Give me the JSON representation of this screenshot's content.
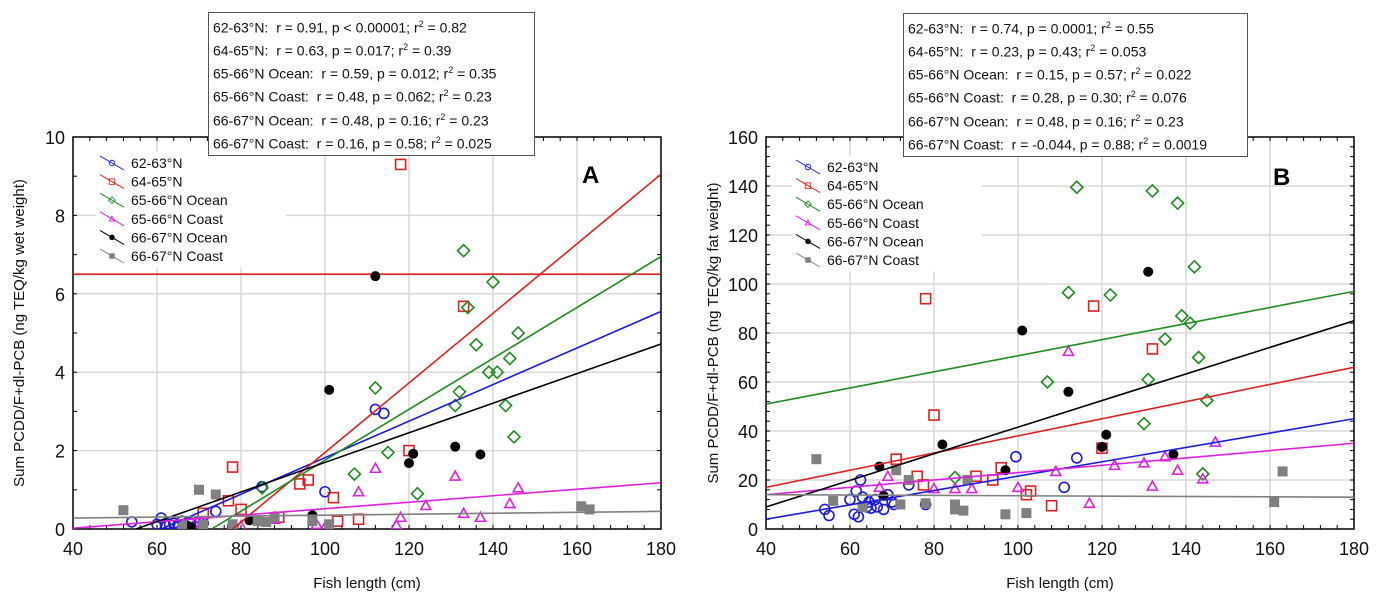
{
  "chart_data": [
    {
      "type": "scatter",
      "panel_label": "A",
      "xlabel": "Fish length (cm)",
      "ylabel": "Sum PCDD/F+dl-PCB (ng TEQ/kg wet weight)",
      "xlim": [
        40,
        180
      ],
      "ylim": [
        0,
        10
      ],
      "xticks": [
        40,
        60,
        80,
        100,
        120,
        140,
        160,
        180
      ],
      "yticks": [
        0,
        2,
        4,
        6,
        8,
        10
      ],
      "grid": true,
      "legend_position": "top-left",
      "stats": [
        {
          "group": "62-63°N:",
          "text": "r = 0.91, p < 0.00001; r",
          "r2": " = 0.82"
        },
        {
          "group": "64-65°N:",
          "text": "r = 0.63, p = 0.017; r",
          "r2": " = 0.39"
        },
        {
          "group": "65-66°N Ocean:",
          "text": "r = 0.59, p = 0.012; r",
          "r2": " = 0.35"
        },
        {
          "group": "65-66°N Coast:",
          "text": "r = 0.48, p = 0.062; r",
          "r2": " = 0.23"
        },
        {
          "group": "66-67°N Ocean:",
          "text": "r = 0.48, p = 0.16; r",
          "r2": " = 0.23"
        },
        {
          "group": "66-67°N Coast:",
          "text": "r = 0.16, p = 0.58; r",
          "r2": " = 0.025"
        }
      ],
      "reference_line": {
        "y": 6.5,
        "color": "#e02020"
      },
      "series": [
        {
          "name": "62-63°N",
          "color": "#1a1ae0",
          "marker": "circle-open",
          "points": [
            [
              54,
              0.18
            ],
            [
              60,
              0.12
            ],
            [
              61,
              0.28
            ],
            [
              62,
              0.1
            ],
            [
              63,
              0.12
            ],
            [
              64,
              0.15
            ],
            [
              65,
              0.1
            ],
            [
              66,
              0.2
            ],
            [
              67,
              0.08
            ],
            [
              68,
              0.15
            ],
            [
              70,
              0.18
            ],
            [
              71,
              0.15
            ],
            [
              74,
              0.45
            ],
            [
              78,
              0.05
            ],
            [
              85,
              1.08
            ],
            [
              100,
              0.95
            ],
            [
              112,
              3.05
            ],
            [
              114,
              2.95
            ]
          ],
          "fit": [
            [
              61,
              0
            ],
            [
              180,
              5.55
            ]
          ]
        },
        {
          "name": "64-65°N",
          "color": "#e02020",
          "marker": "square-open",
          "points": [
            [
              71,
              0.4
            ],
            [
              77,
              0.72
            ],
            [
              78,
              1.58
            ],
            [
              80,
              0.5
            ],
            [
              89,
              0.3
            ],
            [
              94,
              1.15
            ],
            [
              96,
              1.25
            ],
            [
              102,
              0.8
            ],
            [
              103,
              0.2
            ],
            [
              108,
              0.25
            ],
            [
              118,
              9.3
            ],
            [
              120,
              2.0
            ],
            [
              133,
              5.68
            ]
          ],
          "fit": [
            [
              78,
              0
            ],
            [
              180,
              9.05
            ]
          ]
        },
        {
          "name": "65-66°N Ocean",
          "color": "#1e8c1e",
          "marker": "diamond-open",
          "points": [
            [
              85,
              1.05
            ],
            [
              107,
              1.4
            ],
            [
              112,
              3.6
            ],
            [
              115,
              1.95
            ],
            [
              122,
              0.9
            ],
            [
              131,
              3.15
            ],
            [
              132,
              3.5
            ],
            [
              133,
              7.1
            ],
            [
              134,
              5.65
            ],
            [
              136,
              4.7
            ],
            [
              139,
              4.0
            ],
            [
              140,
              6.3
            ],
            [
              141,
              4.0
            ],
            [
              143,
              3.15
            ],
            [
              144,
              4.35
            ],
            [
              145,
              2.35
            ],
            [
              146,
              5.0
            ]
          ],
          "fit": [
            [
              73,
              0
            ],
            [
              180,
              6.95
            ]
          ]
        },
        {
          "name": "65-66°N Coast",
          "color": "#e020e0",
          "marker": "triangle-open",
          "points": [
            [
              67,
              0.1
            ],
            [
              69,
              0.15
            ],
            [
              78,
              0.05
            ],
            [
              80,
              0.08
            ],
            [
              88,
              0.25
            ],
            [
              98,
              0.12
            ],
            [
              100,
              0.05
            ],
            [
              108,
              0.95
            ],
            [
              112,
              1.55
            ],
            [
              117,
              0.1
            ],
            [
              124,
              0.6
            ],
            [
              131,
              1.35
            ],
            [
              133,
              0.4
            ],
            [
              137,
              0.3
            ],
            [
              144,
              0.65
            ],
            [
              146,
              1.05
            ],
            [
              118,
              0.3
            ]
          ],
          "fit": [
            [
              40,
              0.02
            ],
            [
              180,
              1.18
            ]
          ]
        },
        {
          "name": "66-67°N Ocean",
          "color": "#000000",
          "marker": "circle-filled",
          "points": [
            [
              67,
              0.08
            ],
            [
              68,
              0.05
            ],
            [
              82,
              0.22
            ],
            [
              97,
              0.35
            ],
            [
              101,
              3.55
            ],
            [
              112,
              6.45
            ],
            [
              120,
              1.68
            ],
            [
              121,
              1.92
            ],
            [
              131,
              2.1
            ],
            [
              137,
              1.9
            ]
          ],
          "fit": [
            [
              55,
              0
            ],
            [
              180,
              4.72
            ]
          ]
        },
        {
          "name": "66-67°N Coast",
          "color": "#808080",
          "marker": "square-filled",
          "points": [
            [
              52,
              0.48
            ],
            [
              66,
              0.12
            ],
            [
              70,
              1.0
            ],
            [
              71,
              0.1
            ],
            [
              74,
              0.88
            ],
            [
              78,
              0.12
            ],
            [
              84,
              0.2
            ],
            [
              86,
              0.18
            ],
            [
              88,
              0.3
            ],
            [
              97,
              0.2
            ],
            [
              101,
              0.12
            ],
            [
              161,
              0.58
            ],
            [
              163,
              0.5
            ]
          ],
          "fit": [
            [
              40,
              0.28
            ],
            [
              180,
              0.45
            ]
          ]
        }
      ]
    },
    {
      "type": "scatter",
      "panel_label": "B",
      "xlabel": "Fish length (cm)",
      "ylabel": "Sum PCDD/F+dl-PCB (ng TEQ/kg fat weight)",
      "xlim": [
        40,
        180
      ],
      "ylim": [
        0,
        160
      ],
      "xticks": [
        40,
        60,
        80,
        100,
        120,
        140,
        160,
        180
      ],
      "yticks": [
        0,
        20,
        40,
        60,
        80,
        100,
        120,
        140,
        160
      ],
      "grid": true,
      "legend_position": "top-left",
      "stats": [
        {
          "group": "62-63°N:",
          "text": "r =  0.74, p = 0.0001; r",
          "r2": " = 0.55"
        },
        {
          "group": "64-65°N:",
          "text": "r =  0.23, p = 0.43; r",
          "r2": " = 0.053"
        },
        {
          "group": "65-66°N Ocean:",
          "text": "r =  0.15, p = 0.57; r",
          "r2": " = 0.022"
        },
        {
          "group": "65-66°N Coast:",
          "text": "r =  0.28, p = 0.30; r",
          "r2": " = 0.076"
        },
        {
          "group": "66-67°N Ocean:",
          "text": "r =  0.48, p = 0.16; r",
          "r2": " = 0.23"
        },
        {
          "group": "66-67°N Coast:",
          "text": "r = -0.044, p = 0.88; r",
          "r2": " = 0.0019"
        }
      ],
      "series": [
        {
          "name": "62-63°N",
          "color": "#1a1ae0",
          "marker": "circle-open",
          "points": [
            [
              54,
              8
            ],
            [
              55,
              5.5
            ],
            [
              60,
              12
            ],
            [
              61,
              6
            ],
            [
              61.5,
              15.5
            ],
            [
              62,
              5
            ],
            [
              62.5,
              20
            ],
            [
              63,
              13
            ],
            [
              64,
              9
            ],
            [
              64.5,
              11
            ],
            [
              65,
              8.5
            ],
            [
              66,
              12
            ],
            [
              66.5,
              9
            ],
            [
              68,
              8
            ],
            [
              69,
              14
            ],
            [
              70,
              11
            ],
            [
              70.5,
              10
            ],
            [
              74,
              18
            ],
            [
              78,
              10
            ],
            [
              99.5,
              29.5
            ],
            [
              111,
              17
            ],
            [
              114,
              29
            ]
          ],
          "fit": [
            [
              40,
              4
            ],
            [
              180,
              45
            ]
          ]
        },
        {
          "name": "64-65°N",
          "color": "#e02020",
          "marker": "square-open",
          "points": [
            [
              71,
              28.5
            ],
            [
              76,
              21.5
            ],
            [
              77.5,
              18
            ],
            [
              78,
              94
            ],
            [
              80,
              46.5
            ],
            [
              90,
              21.5
            ],
            [
              94,
              20
            ],
            [
              96,
              25
            ],
            [
              102,
              14
            ],
            [
              103,
              15.5
            ],
            [
              108,
              9.5
            ],
            [
              118,
              91
            ],
            [
              120,
              33
            ],
            [
              132,
              73.5
            ]
          ],
          "fit": [
            [
              40,
              17
            ],
            [
              180,
              66
            ]
          ]
        },
        {
          "name": "65-66°N Ocean",
          "color": "#1e8c1e",
          "marker": "diamond-open",
          "points": [
            [
              85,
              21
            ],
            [
              107,
              60
            ],
            [
              112,
              96.5
            ],
            [
              114,
              139.5
            ],
            [
              122,
              95.5
            ],
            [
              130,
              43
            ],
            [
              131,
              61
            ],
            [
              132,
              138
            ],
            [
              135,
              77.5
            ],
            [
              138,
              133
            ],
            [
              139,
              87
            ],
            [
              141,
              84
            ],
            [
              142,
              107
            ],
            [
              143,
              70
            ],
            [
              144,
              22.5
            ],
            [
              145,
              52.5
            ]
          ],
          "fit": [
            [
              40,
              51
            ],
            [
              180,
              97
            ]
          ]
        },
        {
          "name": "65-66°N Coast",
          "color": "#e020e0",
          "marker": "triangle-open",
          "points": [
            [
              67,
              17
            ],
            [
              69,
              21.5
            ],
            [
              80,
              16.5
            ],
            [
              85,
              16.5
            ],
            [
              89,
              16.5
            ],
            [
              100,
              17
            ],
            [
              109,
              23.5
            ],
            [
              112,
              72.5
            ],
            [
              117,
              10.5
            ],
            [
              123,
              26
            ],
            [
              130,
              27
            ],
            [
              132,
              17.5
            ],
            [
              135,
              29.5
            ],
            [
              138,
              24
            ],
            [
              144,
              20.5
            ],
            [
              147,
              35.5
            ]
          ],
          "fit": [
            [
              40,
              14
            ],
            [
              180,
              35
            ]
          ]
        },
        {
          "name": "66-67°N Ocean",
          "color": "#000000",
          "marker": "circle-filled",
          "points": [
            [
              67,
              25.5
            ],
            [
              68,
              13.5
            ],
            [
              82,
              34.5
            ],
            [
              97,
              24
            ],
            [
              101,
              81
            ],
            [
              112,
              56
            ],
            [
              120,
              33.5
            ],
            [
              121,
              38.5
            ],
            [
              131,
              105
            ],
            [
              137,
              30.5
            ]
          ],
          "fit": [
            [
              40,
              9
            ],
            [
              180,
              85
            ]
          ]
        },
        {
          "name": "66-67°N Coast",
          "color": "#808080",
          "marker": "square-filled",
          "points": [
            [
              52,
              28.5
            ],
            [
              56,
              11.5
            ],
            [
              63,
              9
            ],
            [
              71,
              24
            ],
            [
              72,
              10
            ],
            [
              74,
              20
            ],
            [
              78,
              10.5
            ],
            [
              85,
              10
            ],
            [
              85,
              8
            ],
            [
              87,
              7.5
            ],
            [
              88,
              20
            ],
            [
              97,
              6
            ],
            [
              102,
              6.5
            ],
            [
              161,
              11
            ],
            [
              163,
              23.5
            ]
          ],
          "fit": [
            [
              40,
              14
            ],
            [
              180,
              13
            ]
          ]
        }
      ]
    }
  ]
}
